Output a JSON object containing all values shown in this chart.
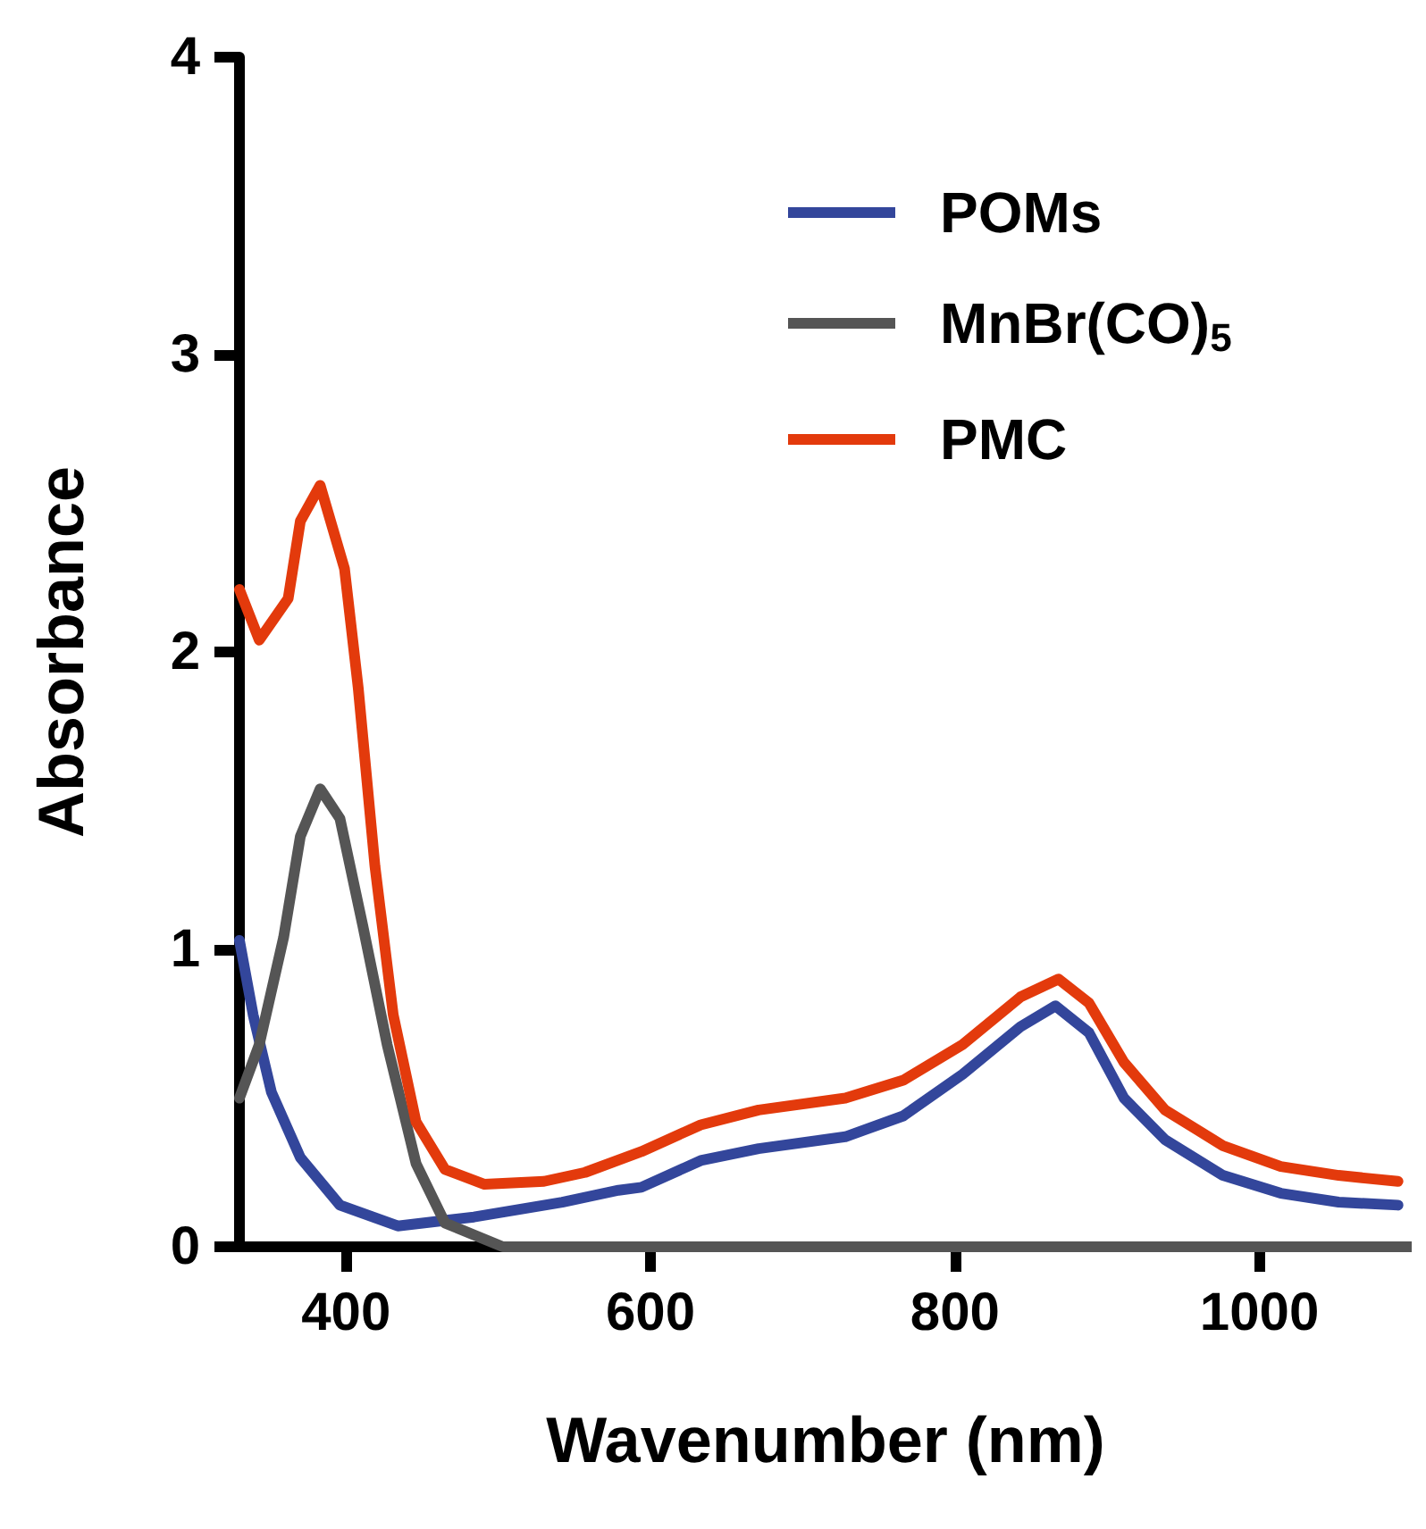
{
  "chart_data": {
    "type": "line",
    "xlabel": "Wavenumber (nm)",
    "ylabel": "Absorbance",
    "xlim": [
      330,
      1100
    ],
    "ylim": [
      0,
      4
    ],
    "xticks": [
      400,
      600,
      800,
      1000
    ],
    "yticks": [
      0,
      1,
      2,
      3,
      4
    ],
    "grid": false,
    "legend": "top right",
    "marker": "none",
    "line_style": "solid",
    "series": [
      {
        "name": "POMs",
        "color": "#33469b",
        "x": [
          330,
          339,
          351,
          370,
          396,
          434,
          484,
          542,
          579,
          594,
          633,
          671,
          728,
          766,
          805,
          843,
          866,
          888,
          911,
          938,
          976,
          1014,
          1052,
          1091
        ],
        "values": [
          1.03,
          0.78,
          0.52,
          0.3,
          0.14,
          0.07,
          0.1,
          0.15,
          0.19,
          0.2,
          0.29,
          0.33,
          0.37,
          0.44,
          0.58,
          0.74,
          0.81,
          0.72,
          0.5,
          0.36,
          0.24,
          0.18,
          0.15,
          0.14
        ]
      },
      {
        "name": "MnBr(CO)$_{5}$",
        "color": "#555555",
        "x": [
          330,
          343,
          359,
          370,
          383,
          396,
          411,
          427,
          446,
          465,
          503,
          600,
          800,
          1000,
          1100
        ],
        "values": [
          0.5,
          0.68,
          1.04,
          1.38,
          1.54,
          1.44,
          1.08,
          0.68,
          0.28,
          0.08,
          0,
          0,
          0,
          0,
          0
        ]
      },
      {
        "name": "PMC",
        "color": "#e33a0c",
        "x": [
          330,
          343,
          362,
          370,
          383,
          399,
          408,
          419,
          431,
          446,
          465,
          491,
          530,
          557,
          594,
          633,
          671,
          728,
          766,
          805,
          843,
          868,
          888,
          911,
          938,
          976,
          1014,
          1052,
          1091
        ],
        "values": [
          2.21,
          2.04,
          2.18,
          2.44,
          2.56,
          2.28,
          1.88,
          1.28,
          0.78,
          0.42,
          0.26,
          0.21,
          0.22,
          0.25,
          0.32,
          0.41,
          0.46,
          0.5,
          0.56,
          0.68,
          0.84,
          0.9,
          0.82,
          0.62,
          0.46,
          0.34,
          0.27,
          0.24,
          0.22
        ]
      }
    ]
  }
}
